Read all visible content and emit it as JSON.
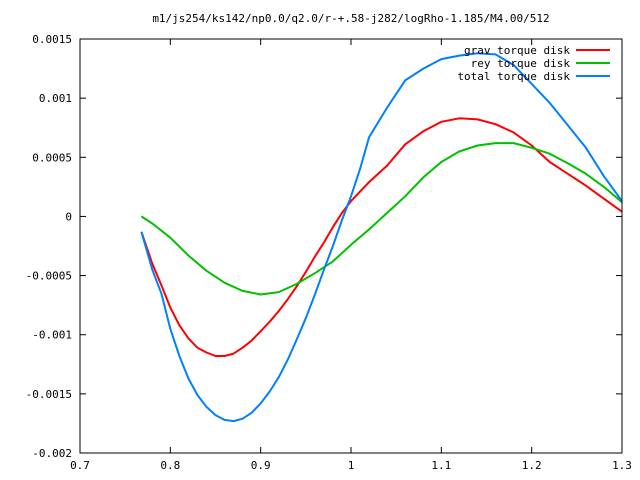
{
  "chart_data": {
    "type": "line",
    "title": "m1/js254/ks142/np0.0/q2.0/r-+.58-j282/logRho-1.185/M4.00/512",
    "xlabel": "",
    "ylabel": "",
    "xlim": [
      0.7,
      1.3
    ],
    "ylim": [
      -0.002,
      0.0015
    ],
    "xticks": [
      0.7,
      0.8,
      0.9,
      1,
      1.1,
      1.2,
      1.3
    ],
    "xtick_labels": [
      "0.7",
      "0.8",
      "0.9",
      "1",
      "1.1",
      "1.2",
      "1.3"
    ],
    "yticks": [
      -0.002,
      -0.0015,
      -0.001,
      -0.0005,
      0,
      0.0005,
      0.001,
      0.0015
    ],
    "ytick_labels": [
      "-0.002",
      "-0.0015",
      "-0.001",
      "-0.0005",
      "0",
      "0.0005",
      "0.001",
      "0.0015"
    ],
    "grid": false,
    "legend_position": "top-right",
    "series": [
      {
        "name": "grav torque disk",
        "color": "#ff0000",
        "x": [
          0.768,
          0.78,
          0.79,
          0.8,
          0.81,
          0.82,
          0.83,
          0.84,
          0.85,
          0.86,
          0.87,
          0.88,
          0.89,
          0.9,
          0.91,
          0.92,
          0.93,
          0.94,
          0.95,
          0.96,
          0.97,
          0.98,
          0.99,
          1.0,
          1.02,
          1.04,
          1.06,
          1.08,
          1.1,
          1.12,
          1.14,
          1.16,
          1.18,
          1.2,
          1.22,
          1.24,
          1.26,
          1.28,
          1.3
        ],
        "y": [
          -0.00013,
          -0.0004,
          -0.00058,
          -0.00077,
          -0.00092,
          -0.00103,
          -0.00111,
          -0.00115,
          -0.00118,
          -0.00118,
          -0.00116,
          -0.00111,
          -0.00105,
          -0.00097,
          -0.00089,
          -0.0008,
          -0.0007,
          -0.00059,
          -0.00047,
          -0.00034,
          -0.00022,
          -9e-05,
          3e-05,
          0.00013,
          0.00029,
          0.00043,
          0.00061,
          0.00072,
          0.0008,
          0.00083,
          0.00082,
          0.00078,
          0.00071,
          0.0006,
          0.00046,
          0.00036,
          0.00026,
          0.00015,
          4e-05
        ]
      },
      {
        "name": "rey torque disk",
        "color": "#00c000",
        "x": [
          0.768,
          0.78,
          0.8,
          0.82,
          0.84,
          0.86,
          0.88,
          0.9,
          0.92,
          0.94,
          0.96,
          0.98,
          1.0,
          1.02,
          1.04,
          1.06,
          1.08,
          1.1,
          1.12,
          1.14,
          1.16,
          1.18,
          1.2,
          1.22,
          1.24,
          1.26,
          1.28,
          1.3
        ],
        "y": [
          0.0,
          -6e-05,
          -0.00018,
          -0.00033,
          -0.00046,
          -0.00056,
          -0.00063,
          -0.00066,
          -0.00064,
          -0.00057,
          -0.00048,
          -0.00038,
          -0.00024,
          -0.00011,
          3e-05,
          0.00017,
          0.00033,
          0.00046,
          0.00055,
          0.0006,
          0.00062,
          0.00062,
          0.00058,
          0.00053,
          0.00045,
          0.00036,
          0.00025,
          0.00012
        ]
      },
      {
        "name": "total torque disk",
        "color": "#0080ff",
        "x": [
          0.768,
          0.78,
          0.79,
          0.8,
          0.81,
          0.82,
          0.83,
          0.84,
          0.85,
          0.86,
          0.87,
          0.88,
          0.89,
          0.9,
          0.91,
          0.92,
          0.93,
          0.94,
          0.95,
          0.96,
          0.97,
          0.98,
          0.99,
          1.0,
          1.01,
          1.02,
          1.04,
          1.06,
          1.08,
          1.1,
          1.12,
          1.14,
          1.16,
          1.18,
          1.2,
          1.22,
          1.24,
          1.26,
          1.28,
          1.3
        ],
        "y": [
          -0.00013,
          -0.00045,
          -0.00065,
          -0.00095,
          -0.00118,
          -0.00137,
          -0.00151,
          -0.00161,
          -0.00168,
          -0.00172,
          -0.00173,
          -0.00171,
          -0.00166,
          -0.00158,
          -0.00148,
          -0.00136,
          -0.00121,
          -0.00104,
          -0.00086,
          -0.00066,
          -0.00045,
          -0.00025,
          -3e-05,
          0.00017,
          0.0004,
          0.00067,
          0.00092,
          0.00115,
          0.00125,
          0.00133,
          0.00136,
          0.00138,
          0.00137,
          0.00128,
          0.00112,
          0.00096,
          0.00077,
          0.00058,
          0.00034,
          0.00013
        ]
      }
    ]
  }
}
